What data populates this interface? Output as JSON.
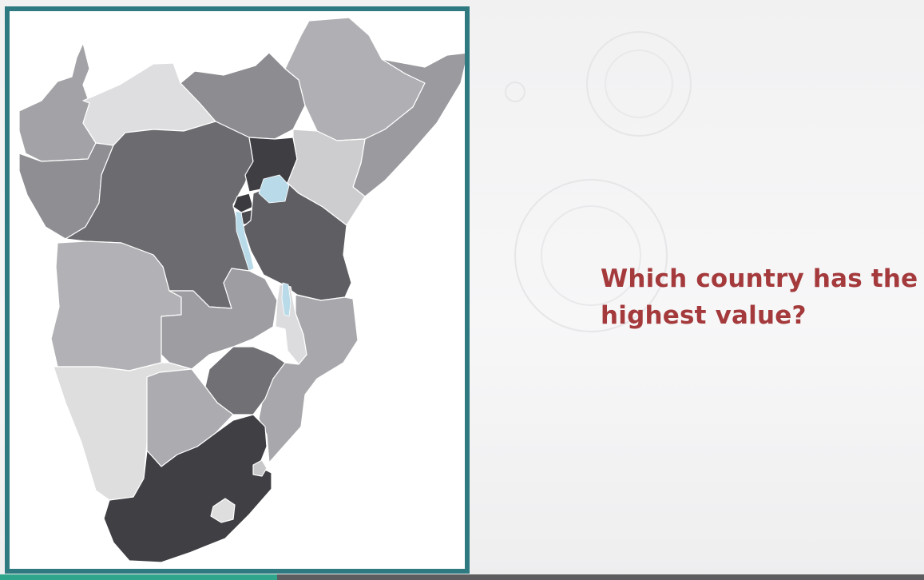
{
  "question": "Which country has the highest value?",
  "colors": {
    "frame_border": "#2f7a80",
    "question_text": "#a43a3c",
    "lake": "#b9dbe9",
    "progress_fill": "#2fa58c"
  },
  "video_progress": 0.3
}
